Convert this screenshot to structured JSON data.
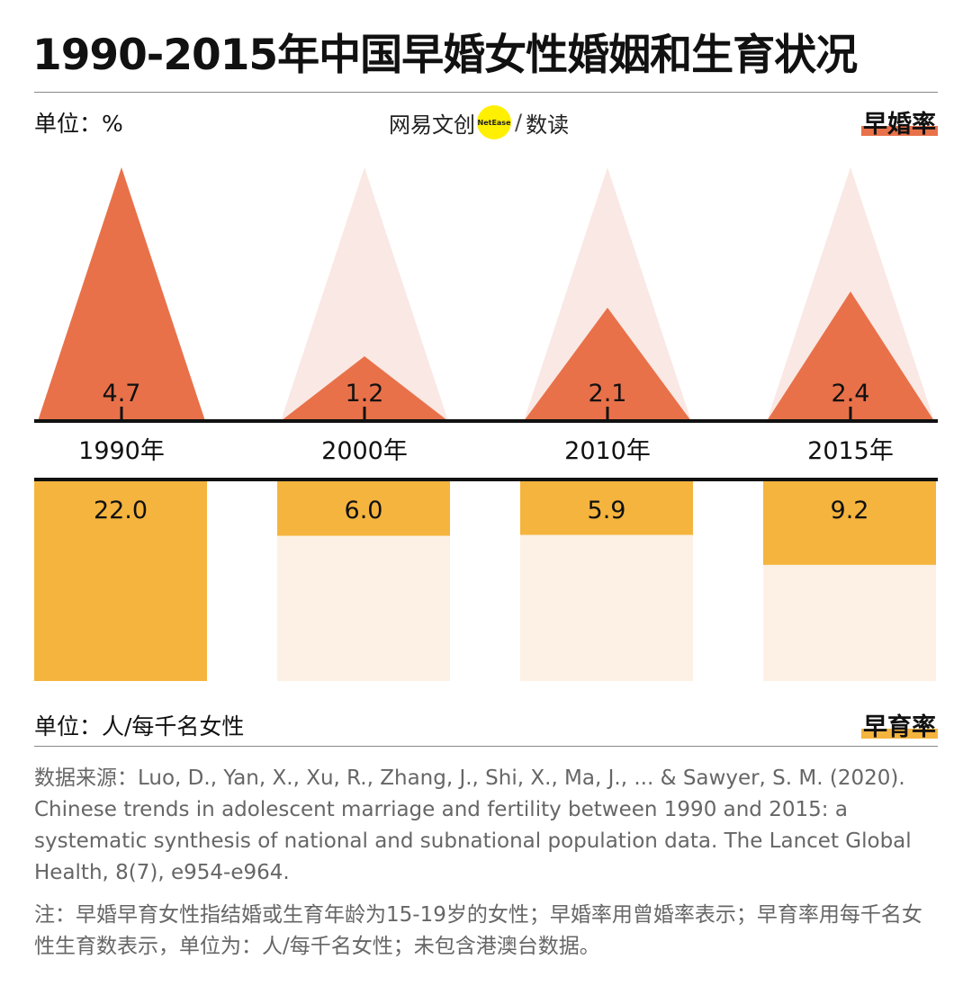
{
  "title": "1990-2015年中国早婚女性婚姻和生育状况",
  "logo": {
    "left": "网易文创",
    "badge": "NetEase",
    "right": "数读"
  },
  "chart_data": [
    {
      "type": "triangle",
      "unit": "单位：%",
      "categories": [
        "1990年",
        "2000年",
        "2010年",
        "2015年"
      ],
      "series": [
        {
          "name": "早婚率",
          "color": "#e8714a",
          "values": [
            4.7,
            1.2,
            2.1,
            2.4
          ]
        }
      ],
      "background_color": "#fae8e4",
      "ylim": [
        0,
        4.7
      ]
    },
    {
      "type": "bar",
      "unit": "单位：人/每千名女性",
      "series": [
        {
          "name": "早育率",
          "color": "#f5b43e",
          "values": [
            22.0,
            6.0,
            5.9,
            9.2
          ],
          "value_labels": [
            "22.0",
            "6.0",
            "5.9",
            "9.2"
          ]
        }
      ],
      "background_color": "#fcf1e4",
      "ylim": [
        0,
        22
      ]
    }
  ],
  "source": "数据来源：Luo, D., Yan, X., Xu, R., Zhang, J., Shi, X., Ma, J., ... & Sawyer, S. M. (2020). Chinese trends in adolescent marriage and fertility between 1990 and 2015: a systematic synthesis of national and subnational population data. The Lancet Global Health, 8(7), e954-e964.",
  "note": "注：早婚早育女性指结婚或生育年龄为15-19岁的女性；早婚率用曾婚率表示；早育率用每千名女性生育数表示，单位为：人/每千名女性；未包含港澳台数据。"
}
